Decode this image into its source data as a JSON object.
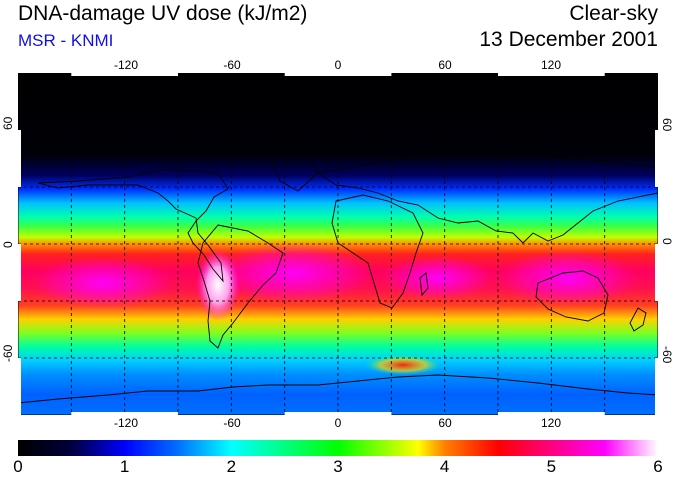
{
  "header": {
    "title": "DNA-damage UV dose (kJ/m2)",
    "subtitle": "MSR - KNMI",
    "condition": "Clear-sky",
    "date": "13 December 2001"
  },
  "map": {
    "projection": "equirectangular",
    "lon_range": [
      -180,
      180
    ],
    "lat_range": [
      -90,
      90
    ],
    "lon_ticks": [
      "-120",
      "-60",
      "0",
      "60",
      "120"
    ],
    "lat_ticks_left": [
      "60",
      "0",
      "-60"
    ],
    "lat_ticks_right": [
      "60",
      "0",
      "-60"
    ],
    "gridlines": "dashed every 30 degrees",
    "coastlines": true
  },
  "colorbar": {
    "min": 0,
    "max": 6,
    "ticks": [
      "0",
      "1",
      "2",
      "3",
      "4",
      "5",
      "6"
    ],
    "stops": [
      {
        "v": 0.0,
        "c": "#000000"
      },
      {
        "v": 0.5,
        "c": "#00003c"
      },
      {
        "v": 1.0,
        "c": "#0000ff"
      },
      {
        "v": 1.5,
        "c": "#0070ff"
      },
      {
        "v": 2.0,
        "c": "#00ffff"
      },
      {
        "v": 2.5,
        "c": "#00ff80"
      },
      {
        "v": 3.0,
        "c": "#00ff00"
      },
      {
        "v": 3.5,
        "c": "#aaff00"
      },
      {
        "v": 3.75,
        "c": "#ffff00"
      },
      {
        "v": 4.0,
        "c": "#ff8000"
      },
      {
        "v": 4.5,
        "c": "#ff0000"
      },
      {
        "v": 5.0,
        "c": "#ff0080"
      },
      {
        "v": 5.5,
        "c": "#ff00ff"
      },
      {
        "v": 6.0,
        "c": "#ffffff"
      }
    ]
  },
  "colors": {
    "title": "#000000",
    "subtitle": "#1010e0"
  }
}
